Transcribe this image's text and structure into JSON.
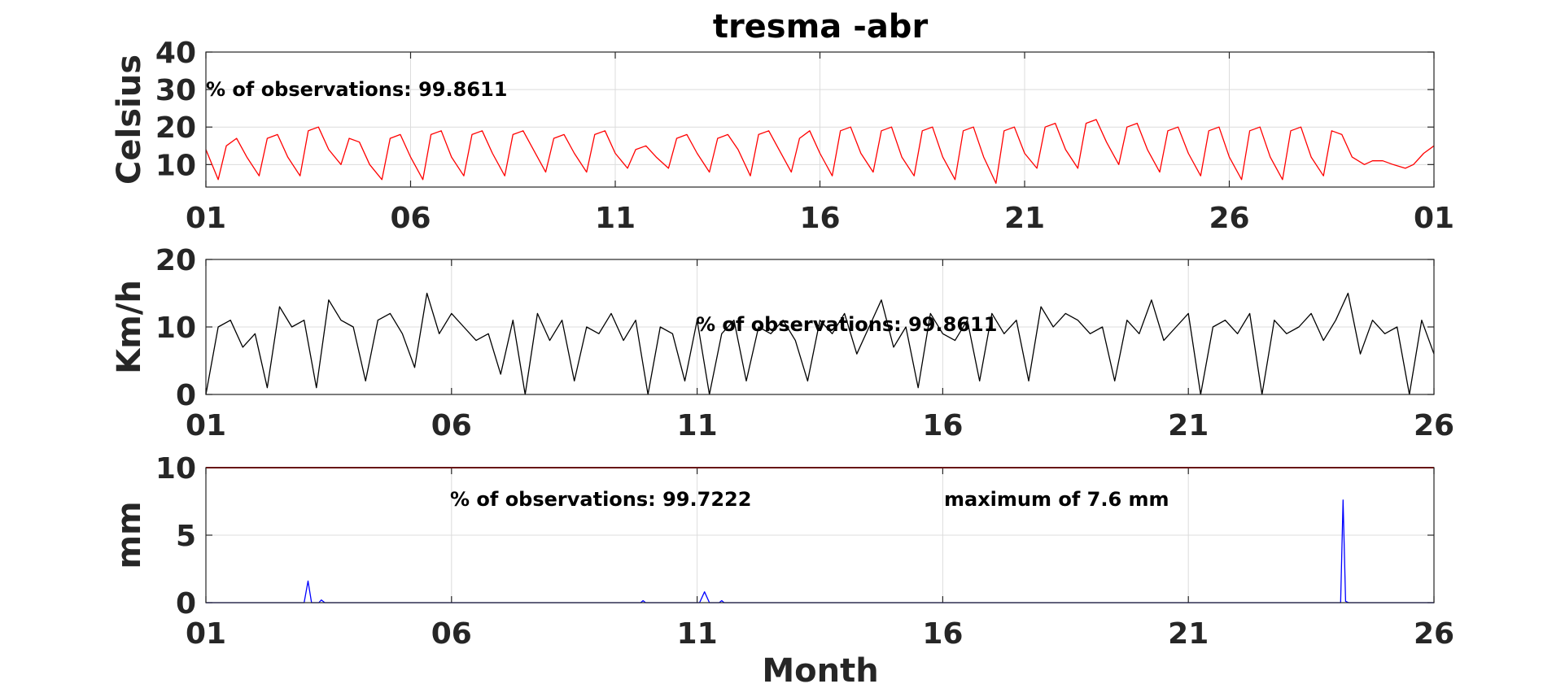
{
  "title": "tresma -abr",
  "xlabel": "Month",
  "chart_data": [
    {
      "type": "line",
      "name": "temperature",
      "ylabel": "Celsius",
      "ylim": [
        4,
        40
      ],
      "yticks": [
        "10",
        "20",
        "30",
        "40"
      ],
      "xticks": [
        "01",
        "06",
        "11",
        "16",
        "21",
        "26",
        "01"
      ],
      "xlim": [
        1,
        31
      ],
      "grid": true,
      "annotation": "% of observations: 99.8611",
      "color": "#ff0000",
      "series": [
        {
          "x": [
            1,
            1.3,
            1.5,
            1.75,
            2,
            2.3,
            2.5,
            2.75,
            3,
            3.3,
            3.5,
            3.75,
            4,
            4.3,
            4.5,
            4.75,
            5,
            5.3,
            5.5,
            5.75,
            6,
            6.3,
            6.5,
            6.75,
            7,
            7.3,
            7.5,
            7.75,
            8,
            8.3,
            8.5,
            8.75,
            9,
            9.3,
            9.5,
            9.75,
            10,
            10.3,
            10.5,
            10.75,
            11,
            11.3,
            11.5,
            11.75,
            12,
            12.3,
            12.5,
            12.75,
            13,
            13.3,
            13.5,
            13.75,
            14,
            14.3,
            14.5,
            14.75,
            15,
            15.3,
            15.5,
            15.75,
            16,
            16.3,
            16.5,
            16.75,
            17,
            17.3,
            17.5,
            17.75,
            18,
            18.3,
            18.5,
            18.75,
            19,
            19.3,
            19.5,
            19.75,
            20,
            20.3,
            20.5,
            20.75,
            21,
            21.3,
            21.5,
            21.75,
            22,
            22.3,
            22.5,
            22.75,
            23,
            23.3,
            23.5,
            23.75,
            24,
            24.3,
            24.5,
            24.75,
            25,
            25.3,
            25.5,
            25.75,
            26,
            26.3,
            26.5,
            26.75,
            27,
            27.3,
            27.5,
            27.75,
            28,
            28.3,
            28.5,
            28.75,
            29,
            29.3,
            29.5,
            29.75,
            30,
            30.3,
            30.5,
            30.75,
            31
          ],
          "y": [
            14,
            6,
            15,
            17,
            12,
            7,
            17,
            18,
            12,
            7,
            19,
            20,
            14,
            10,
            17,
            16,
            10,
            6,
            17,
            18,
            12,
            6,
            18,
            19,
            12,
            7,
            18,
            19,
            13,
            7,
            18,
            19,
            14,
            8,
            17,
            18,
            13,
            8,
            18,
            19,
            13,
            9,
            14,
            15,
            12,
            9,
            17,
            18,
            13,
            8,
            17,
            18,
            14,
            7,
            18,
            19,
            14,
            8,
            17,
            19,
            13,
            7,
            19,
            20,
            13,
            8,
            19,
            20,
            12,
            7,
            19,
            20,
            12,
            6,
            19,
            20,
            12,
            5,
            19,
            20,
            13,
            9,
            20,
            21,
            14,
            9,
            21,
            22,
            16,
            10,
            20,
            21,
            14,
            8,
            19,
            20,
            13,
            7,
            19,
            20,
            12,
            6,
            19,
            20,
            12,
            6,
            19,
            20,
            12,
            7,
            19,
            18,
            12,
            10,
            11,
            11,
            10,
            9,
            10,
            13,
            15
          ]
        }
      ]
    },
    {
      "type": "line",
      "name": "wind",
      "ylabel": "Km/h",
      "ylim": [
        0,
        20
      ],
      "yticks": [
        "0",
        "10",
        "20"
      ],
      "xticks": [
        "01",
        "06",
        "11",
        "16",
        "21",
        "26"
      ],
      "xlim": [
        1,
        26
      ],
      "grid": true,
      "annotation": "% of observations: 99.8611",
      "color": "#000000",
      "series": [
        {
          "x": [
            1,
            1.25,
            1.5,
            1.75,
            2,
            2.25,
            2.5,
            2.75,
            3,
            3.25,
            3.5,
            3.75,
            4,
            4.25,
            4.5,
            4.75,
            5,
            5.25,
            5.5,
            5.75,
            6,
            6.25,
            6.5,
            6.75,
            7,
            7.25,
            7.5,
            7.75,
            8,
            8.25,
            8.5,
            8.75,
            9,
            9.25,
            9.5,
            9.75,
            10,
            10.25,
            10.5,
            10.75,
            11,
            11.25,
            11.5,
            11.75,
            12,
            12.25,
            12.5,
            12.75,
            13,
            13.25,
            13.5,
            13.75,
            14,
            14.25,
            14.5,
            14.75,
            15,
            15.25,
            15.5,
            15.75,
            16,
            16.25,
            16.5,
            16.75,
            17,
            17.25,
            17.5,
            17.75,
            18,
            18.25,
            18.5,
            18.75,
            19,
            19.25,
            19.5,
            19.75,
            20,
            20.25,
            20.5,
            20.75,
            21,
            21.25,
            21.5,
            21.75,
            22,
            22.25,
            22.5,
            22.75,
            23,
            23.25,
            23.5,
            23.75,
            24,
            24.25,
            24.5,
            24.75,
            25,
            25.25,
            25.5,
            25.75,
            26
          ],
          "y": [
            0,
            10,
            11,
            7,
            9,
            1,
            13,
            10,
            11,
            1,
            14,
            11,
            10,
            2,
            11,
            12,
            9,
            4,
            15,
            9,
            12,
            10,
            8,
            9,
            3,
            11,
            0,
            12,
            8,
            11,
            2,
            10,
            9,
            12,
            8,
            11,
            0,
            10,
            9,
            2,
            11,
            0,
            9,
            11,
            2,
            10,
            9,
            11,
            8,
            2,
            11,
            9,
            12,
            6,
            10,
            14,
            7,
            10,
            1,
            12,
            9,
            8,
            11,
            2,
            12,
            9,
            11,
            2,
            13,
            10,
            12,
            11,
            9,
            10,
            2,
            11,
            9,
            14,
            8,
            10,
            12,
            0,
            10,
            11,
            9,
            12,
            0,
            11,
            9,
            10,
            12,
            8,
            11,
            15,
            6,
            11,
            9,
            10,
            0,
            11,
            6
          ]
        }
      ]
    },
    {
      "type": "line",
      "name": "precipitation",
      "ylabel": "mm",
      "ylim": [
        0,
        10
      ],
      "yticks": [
        "0",
        "5",
        "10"
      ],
      "xticks": [
        "01",
        "06",
        "11",
        "16",
        "21",
        "26"
      ],
      "xlim": [
        1,
        26
      ],
      "grid": true,
      "annotation": "% of observations: 99.7222",
      "annotation2": "maximum of 7.6 mm",
      "reference_line": 10,
      "reference_color": "#cc0000",
      "color": "#0000ff",
      "series": [
        {
          "x": [
            1,
            3.0,
            3.08,
            3.15,
            3.3,
            3.35,
            3.42,
            9.85,
            9.9,
            9.95,
            11.05,
            11.15,
            11.25,
            11.45,
            11.5,
            11.55,
            24.1,
            24.15,
            24.2,
            24.26,
            26
          ],
          "y": [
            0,
            0,
            1.6,
            0,
            0,
            0.2,
            0,
            0,
            0.15,
            0,
            0,
            0.8,
            0,
            0,
            0.15,
            0,
            0,
            7.6,
            0.1,
            0,
            0
          ]
        }
      ]
    }
  ]
}
